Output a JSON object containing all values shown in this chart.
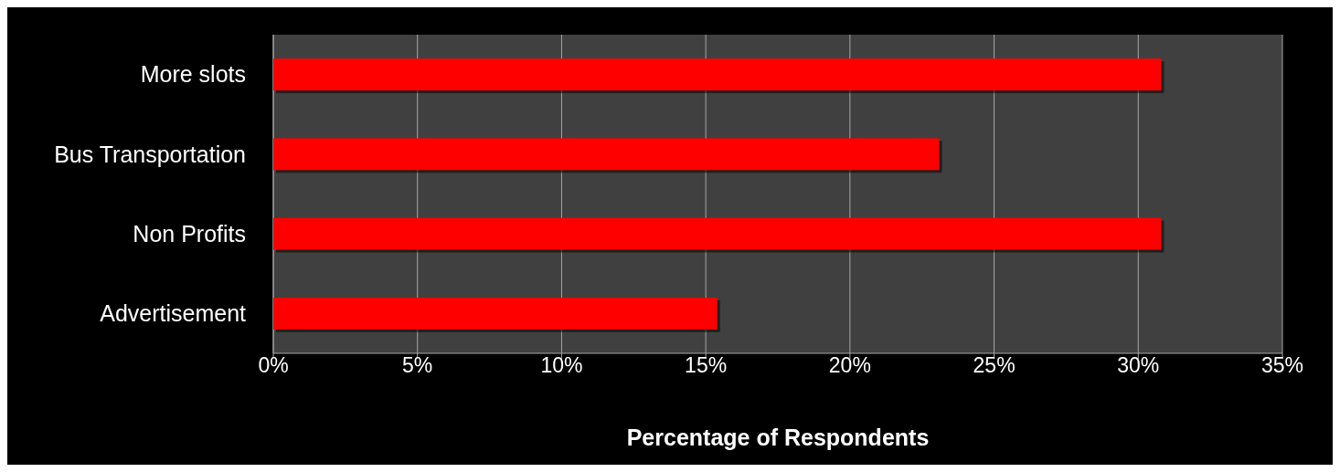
{
  "chart_data": {
    "type": "bar",
    "orientation": "horizontal",
    "xlabel": "Percentage of Respondents",
    "categories": [
      "More slots",
      "Bus Transportation",
      "Non Profits",
      "Advertisement"
    ],
    "values": [
      30.8,
      23.1,
      30.8,
      15.4
    ],
    "color": "#ff0000",
    "xlim": [
      0,
      35
    ],
    "xticks": [
      {
        "value": 0,
        "label": "0%"
      },
      {
        "value": 5,
        "label": "5%"
      },
      {
        "value": 10,
        "label": "10%"
      },
      {
        "value": 15,
        "label": "15%"
      },
      {
        "value": 20,
        "label": "20%"
      },
      {
        "value": 25,
        "label": "25%"
      },
      {
        "value": 30,
        "label": "30%"
      },
      {
        "value": 35,
        "label": "35%"
      }
    ],
    "grid": "x"
  }
}
